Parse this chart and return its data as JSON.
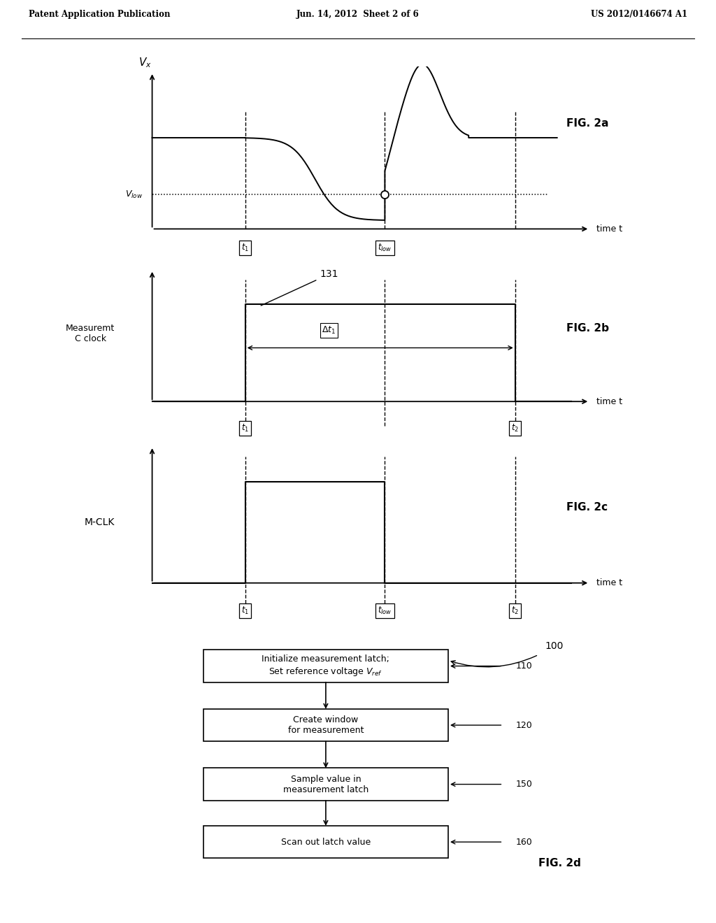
{
  "header_left": "Patent Application Publication",
  "header_center": "Jun. 14, 2012  Sheet 2 of 6",
  "header_right": "US 2012/0146674 A1",
  "fig2a_label": "FIG. 2a",
  "fig2b_label": "FIG. 2b",
  "fig2c_label": "FIG. 2c",
  "fig2d_label": "FIG. 2d",
  "bg_color": "#ffffff",
  "flow_box_labels": [
    "Initialize measurement latch;\nSet reference voltage $V_{ref}$",
    "Create window\nfor measurement",
    "Sample value in\nmeasurement latch",
    "Scan out latch value"
  ],
  "flow_box_ids": [
    "110",
    "120",
    "150",
    "160"
  ],
  "flow_label": "100"
}
